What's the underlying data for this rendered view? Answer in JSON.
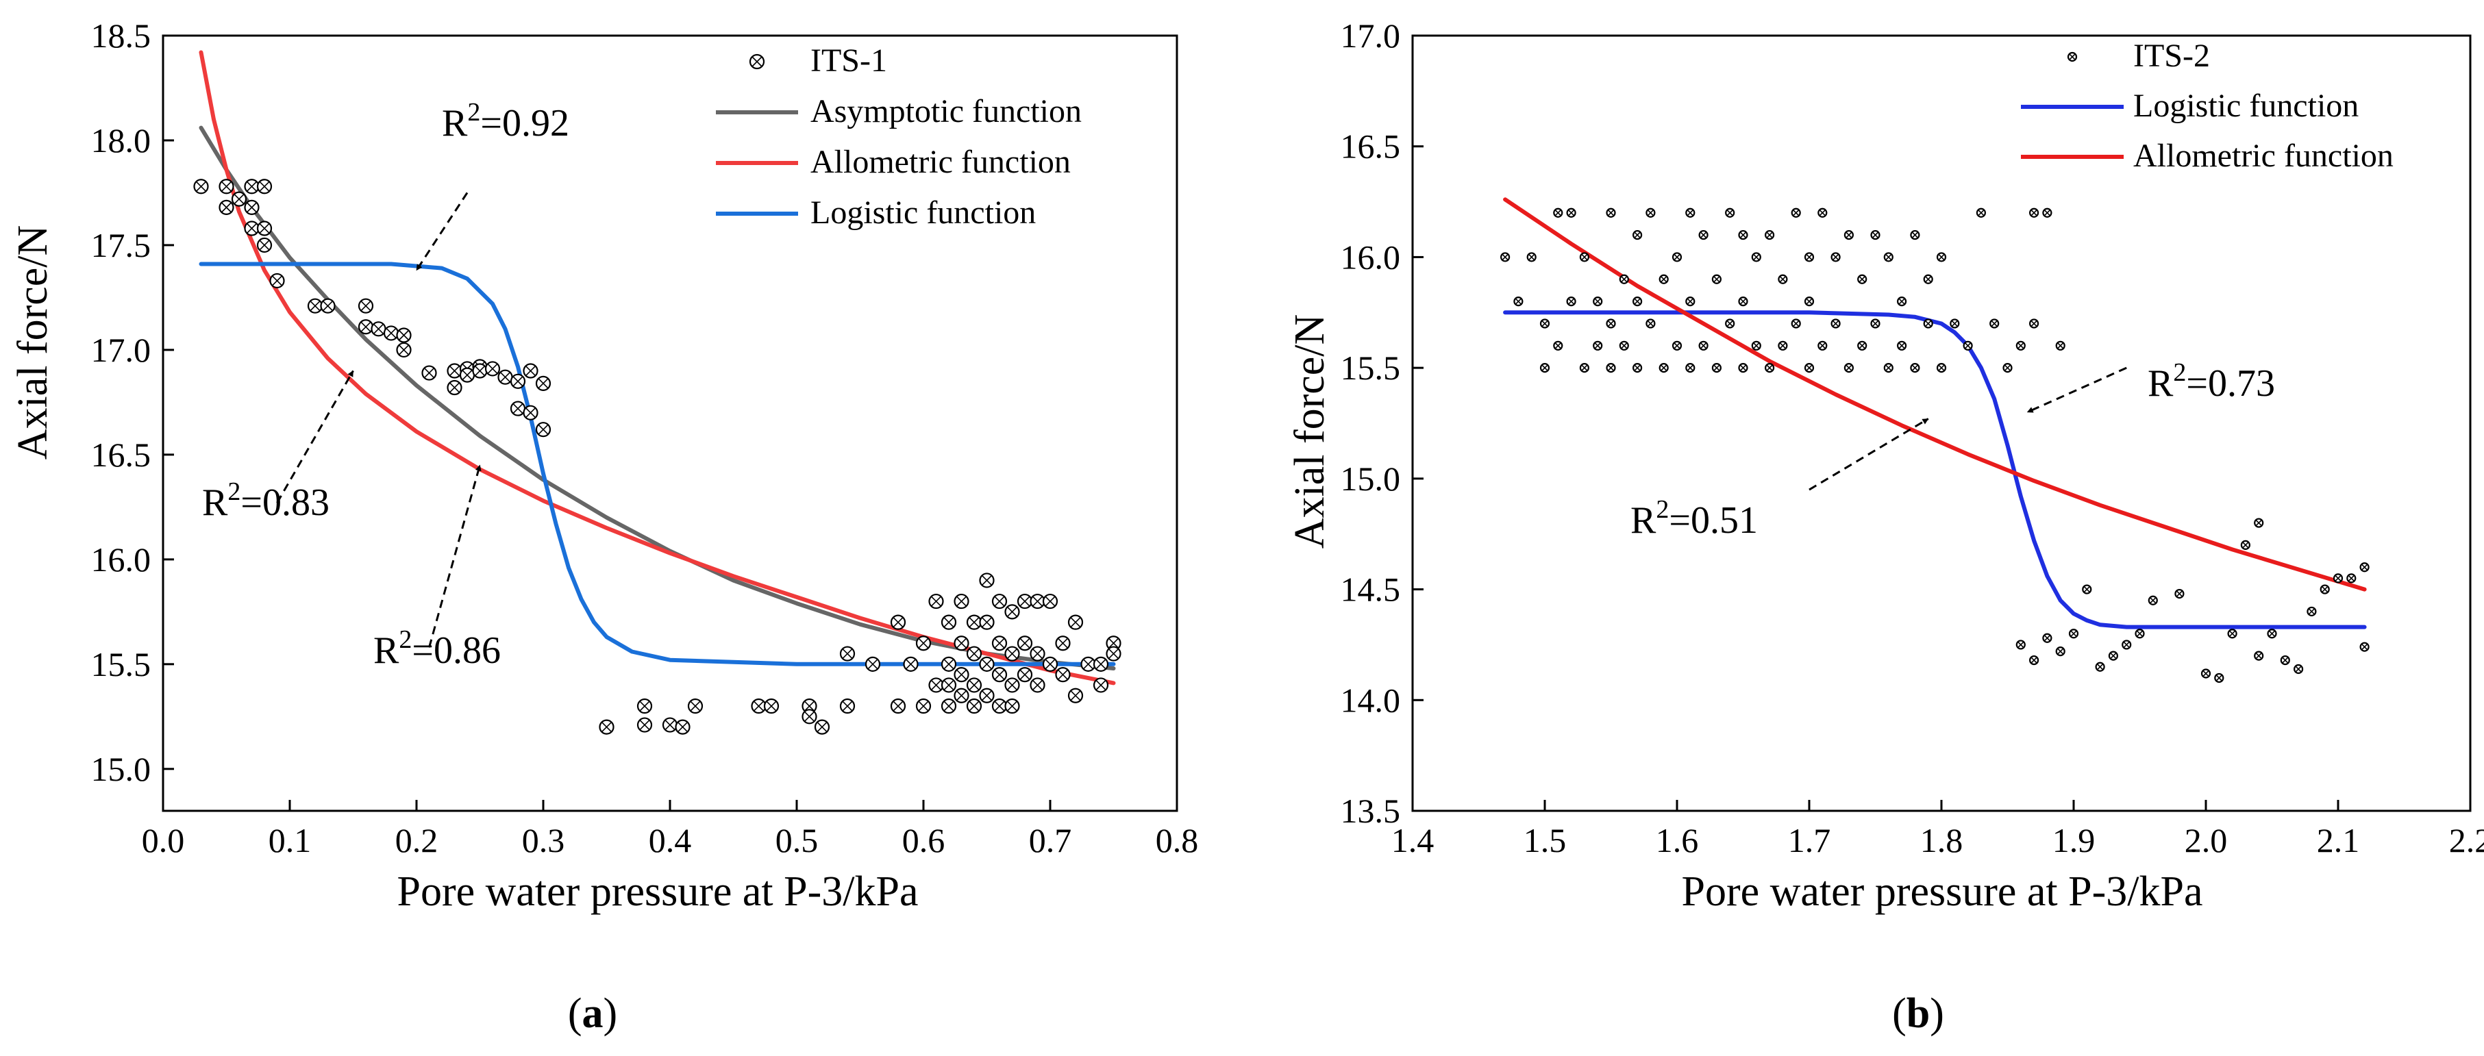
{
  "chart_data": [
    {
      "type": "scatter",
      "panel": "a",
      "panel_label": "(a)",
      "xlabel": "Pore water pressure at P-3/kPa",
      "ylabel": "Axial force/N",
      "xlim": [
        0.0,
        0.8
      ],
      "ylim": [
        14.8,
        18.5
      ],
      "xticks": [
        0.0,
        0.1,
        0.2,
        0.3,
        0.4,
        0.5,
        0.6,
        0.7,
        0.8
      ],
      "xtick_labels": [
        "0.0",
        "0.1",
        "0.2",
        "0.3",
        "0.4",
        "0.5",
        "0.6",
        "0.7",
        "0.8"
      ],
      "yticks": [
        15.0,
        15.5,
        16.0,
        16.5,
        17.0,
        17.5,
        18.0,
        18.5
      ],
      "ytick_labels": [
        "15.0",
        "15.5",
        "16.0",
        "16.5",
        "17.0",
        "17.5",
        "18.0",
        "18.5"
      ],
      "legend_position": "top-right",
      "series": [
        {
          "name": "ITS-1",
          "kind": "scatter",
          "marker": "circle-x",
          "color": "#000000",
          "x": [
            0.03,
            0.05,
            0.05,
            0.06,
            0.07,
            0.07,
            0.07,
            0.08,
            0.08,
            0.08,
            0.09,
            0.12,
            0.13,
            0.16,
            0.16,
            0.17,
            0.18,
            0.19,
            0.19,
            0.21,
            0.23,
            0.23,
            0.24,
            0.24,
            0.25,
            0.25,
            0.26,
            0.27,
            0.28,
            0.28,
            0.29,
            0.29,
            0.3,
            0.3,
            0.35,
            0.38,
            0.38,
            0.4,
            0.41,
            0.42,
            0.47,
            0.48,
            0.51,
            0.51,
            0.52,
            0.54,
            0.54,
            0.56,
            0.58,
            0.58,
            0.59,
            0.6,
            0.6,
            0.61,
            0.61,
            0.62,
            0.62,
            0.62,
            0.62,
            0.63,
            0.63,
            0.63,
            0.63,
            0.64,
            0.64,
            0.64,
            0.64,
            0.65,
            0.65,
            0.65,
            0.65,
            0.66,
            0.66,
            0.66,
            0.66,
            0.67,
            0.67,
            0.67,
            0.67,
            0.68,
            0.68,
            0.68,
            0.69,
            0.69,
            0.69,
            0.7,
            0.7,
            0.71,
            0.71,
            0.72,
            0.72,
            0.73,
            0.74,
            0.74,
            0.75,
            0.75
          ],
          "y": [
            17.78,
            17.78,
            17.68,
            17.72,
            17.78,
            17.68,
            17.58,
            17.78,
            17.58,
            17.5,
            17.33,
            17.21,
            17.21,
            17.21,
            17.11,
            17.1,
            17.08,
            17.07,
            17.0,
            16.89,
            16.9,
            16.82,
            16.91,
            16.88,
            16.92,
            16.9,
            16.91,
            16.87,
            16.85,
            16.72,
            16.9,
            16.7,
            16.84,
            16.62,
            15.2,
            15.3,
            15.21,
            15.21,
            15.2,
            15.3,
            15.3,
            15.3,
            15.3,
            15.25,
            15.2,
            15.55,
            15.3,
            15.5,
            15.7,
            15.3,
            15.5,
            15.6,
            15.3,
            15.8,
            15.4,
            15.7,
            15.5,
            15.4,
            15.3,
            15.8,
            15.6,
            15.45,
            15.35,
            15.7,
            15.55,
            15.4,
            15.3,
            15.9,
            15.7,
            15.5,
            15.35,
            15.8,
            15.6,
            15.45,
            15.3,
            15.75,
            15.55,
            15.4,
            15.3,
            15.8,
            15.6,
            15.45,
            15.8,
            15.55,
            15.4,
            15.8,
            15.5,
            15.6,
            15.45,
            15.7,
            15.35,
            15.5,
            15.5,
            15.4,
            15.6,
            15.55
          ]
        },
        {
          "name": "Asymptotic function",
          "kind": "line",
          "color": "#666666",
          "x": [
            0.03,
            0.05,
            0.07,
            0.1,
            0.13,
            0.16,
            0.2,
            0.25,
            0.3,
            0.35,
            0.4,
            0.45,
            0.5,
            0.55,
            0.6,
            0.65,
            0.7,
            0.75
          ],
          "y": [
            18.06,
            17.86,
            17.68,
            17.44,
            17.24,
            17.05,
            16.83,
            16.59,
            16.38,
            16.2,
            16.04,
            15.9,
            15.79,
            15.69,
            15.61,
            15.55,
            15.51,
            15.48
          ]
        },
        {
          "name": "Allometric function",
          "kind": "line",
          "color": "#ef3b3b",
          "x": [
            0.03,
            0.04,
            0.05,
            0.06,
            0.08,
            0.1,
            0.13,
            0.16,
            0.2,
            0.25,
            0.3,
            0.35,
            0.4,
            0.45,
            0.5,
            0.55,
            0.6,
            0.65,
            0.7,
            0.75
          ],
          "y": [
            18.42,
            18.1,
            17.86,
            17.66,
            17.38,
            17.18,
            16.96,
            16.79,
            16.61,
            16.43,
            16.28,
            16.15,
            16.03,
            15.92,
            15.82,
            15.72,
            15.63,
            15.55,
            15.47,
            15.41
          ]
        },
        {
          "name": "Logistic function",
          "kind": "line",
          "color": "#1a70d9",
          "x": [
            0.03,
            0.1,
            0.18,
            0.22,
            0.24,
            0.26,
            0.27,
            0.28,
            0.29,
            0.3,
            0.31,
            0.32,
            0.33,
            0.34,
            0.35,
            0.37,
            0.4,
            0.45,
            0.5,
            0.6,
            0.75
          ],
          "y": [
            17.41,
            17.41,
            17.41,
            17.39,
            17.34,
            17.22,
            17.1,
            16.92,
            16.68,
            16.41,
            16.17,
            15.96,
            15.81,
            15.7,
            15.63,
            15.56,
            15.52,
            15.51,
            15.5,
            15.5,
            15.5
          ]
        }
      ],
      "annotations": [
        {
          "label": "R",
          "sup": "2",
          "value": "=0.92",
          "tip": [
            0.2,
            17.38
          ],
          "from": [
            0.24,
            17.75
          ]
        },
        {
          "label": "R",
          "sup": "2",
          "value": "=0.83",
          "tip": [
            0.15,
            16.9
          ],
          "from": [
            0.09,
            16.27
          ]
        },
        {
          "label": "R",
          "sup": "2",
          "value": "=0.86",
          "tip": [
            0.25,
            16.45
          ],
          "from": [
            0.21,
            15.58
          ]
        }
      ]
    },
    {
      "type": "scatter",
      "panel": "b",
      "panel_label": "(b)",
      "xlabel": "Pore water pressure at P-3/kPa",
      "ylabel": "Axial force/N",
      "xlim": [
        1.4,
        2.2
      ],
      "ylim": [
        13.5,
        17.0
      ],
      "xticks": [
        1.4,
        1.5,
        1.6,
        1.7,
        1.8,
        1.9,
        2.0,
        2.1,
        2.2
      ],
      "xtick_labels": [
        "1.4",
        "1.5",
        "1.6",
        "1.7",
        "1.8",
        "1.9",
        "2.0",
        "2.1",
        "2.2"
      ],
      "yticks": [
        13.5,
        14.0,
        14.5,
        15.0,
        15.5,
        16.0,
        16.5,
        17.0
      ],
      "ytick_labels": [
        "13.5",
        "14.0",
        "14.5",
        "15.0",
        "15.5",
        "16.0",
        "16.5",
        "17.0"
      ],
      "legend_position": "top-right",
      "series": [
        {
          "name": "ITS-2",
          "kind": "scatter",
          "marker": "circle-x",
          "color": "#000000",
          "x": [
            1.47,
            1.48,
            1.49,
            1.5,
            1.5,
            1.51,
            1.51,
            1.52,
            1.52,
            1.53,
            1.53,
            1.54,
            1.54,
            1.55,
            1.55,
            1.55,
            1.56,
            1.56,
            1.57,
            1.57,
            1.57,
            1.58,
            1.58,
            1.59,
            1.59,
            1.6,
            1.6,
            1.61,
            1.61,
            1.61,
            1.62,
            1.62,
            1.63,
            1.63,
            1.64,
            1.64,
            1.65,
            1.65,
            1.65,
            1.66,
            1.66,
            1.67,
            1.67,
            1.68,
            1.68,
            1.69,
            1.69,
            1.7,
            1.7,
            1.7,
            1.71,
            1.71,
            1.72,
            1.72,
            1.73,
            1.73,
            1.74,
            1.74,
            1.75,
            1.75,
            1.76,
            1.76,
            1.77,
            1.77,
            1.78,
            1.78,
            1.79,
            1.79,
            1.8,
            1.8,
            1.81,
            1.82,
            1.83,
            1.84,
            1.85,
            1.86,
            1.87,
            1.87,
            1.88,
            1.89,
            1.86,
            1.87,
            1.88,
            1.89,
            1.9,
            1.91,
            1.92,
            1.93,
            1.94,
            1.95,
            1.96,
            1.98,
            2.0,
            2.01,
            2.02,
            2.03,
            2.04,
            2.04,
            2.05,
            2.06,
            2.07,
            2.08,
            2.09,
            2.1,
            2.11,
            2.12,
            2.12
          ],
          "y": [
            16.0,
            15.8,
            16.0,
            15.5,
            15.7,
            16.2,
            15.6,
            16.2,
            15.8,
            15.5,
            16.0,
            15.8,
            15.6,
            16.2,
            15.7,
            15.5,
            15.9,
            15.6,
            16.1,
            15.8,
            15.5,
            16.2,
            15.7,
            15.9,
            15.5,
            16.0,
            15.6,
            16.2,
            15.8,
            15.5,
            16.1,
            15.6,
            15.9,
            15.5,
            16.2,
            15.7,
            16.1,
            15.8,
            15.5,
            16.0,
            15.6,
            16.1,
            15.5,
            15.9,
            15.6,
            16.2,
            15.7,
            16.0,
            15.8,
            15.5,
            16.2,
            15.6,
            16.0,
            15.7,
            16.1,
            15.5,
            15.9,
            15.6,
            16.1,
            15.7,
            16.0,
            15.5,
            15.8,
            15.6,
            16.1,
            15.5,
            15.9,
            15.7,
            16.0,
            15.5,
            15.7,
            15.6,
            16.2,
            15.7,
            15.5,
            15.6,
            16.2,
            15.7,
            16.2,
            15.6,
            14.25,
            14.18,
            14.28,
            14.22,
            14.3,
            14.5,
            14.15,
            14.2,
            14.25,
            14.3,
            14.45,
            14.48,
            14.12,
            14.1,
            14.3,
            14.7,
            14.8,
            14.2,
            14.3,
            14.18,
            14.14,
            14.4,
            14.5,
            14.55,
            14.55,
            14.24,
            14.6
          ]
        },
        {
          "name": "Logistic function",
          "kind": "line",
          "color": "#1f2fe0",
          "x": [
            1.47,
            1.6,
            1.7,
            1.76,
            1.78,
            1.8,
            1.81,
            1.82,
            1.83,
            1.84,
            1.85,
            1.86,
            1.87,
            1.88,
            1.89,
            1.9,
            1.91,
            1.92,
            1.94,
            1.97,
            2.0,
            2.05,
            2.12
          ],
          "y": [
            15.75,
            15.75,
            15.75,
            15.74,
            15.73,
            15.7,
            15.66,
            15.6,
            15.5,
            15.36,
            15.15,
            14.92,
            14.72,
            14.56,
            14.45,
            14.39,
            14.36,
            14.34,
            14.33,
            14.33,
            14.33,
            14.33,
            14.33
          ]
        },
        {
          "name": "Allometric function",
          "kind": "line",
          "color": "#e81c1c",
          "x": [
            1.47,
            1.52,
            1.57,
            1.62,
            1.67,
            1.72,
            1.77,
            1.82,
            1.87,
            1.92,
            1.97,
            2.02,
            2.07,
            2.12
          ],
          "y": [
            16.26,
            16.06,
            15.87,
            15.7,
            15.53,
            15.38,
            15.24,
            15.11,
            14.99,
            14.88,
            14.78,
            14.68,
            14.59,
            14.5
          ]
        }
      ],
      "annotations": [
        {
          "label": "R",
          "sup": "2",
          "value": "=0.73",
          "tip": [
            1.865,
            15.3
          ],
          "from": [
            1.94,
            15.5
          ]
        },
        {
          "label": "R",
          "sup": "2",
          "value": "=0.51",
          "tip": [
            1.79,
            15.27
          ],
          "from": [
            1.7,
            14.95
          ]
        }
      ]
    }
  ]
}
